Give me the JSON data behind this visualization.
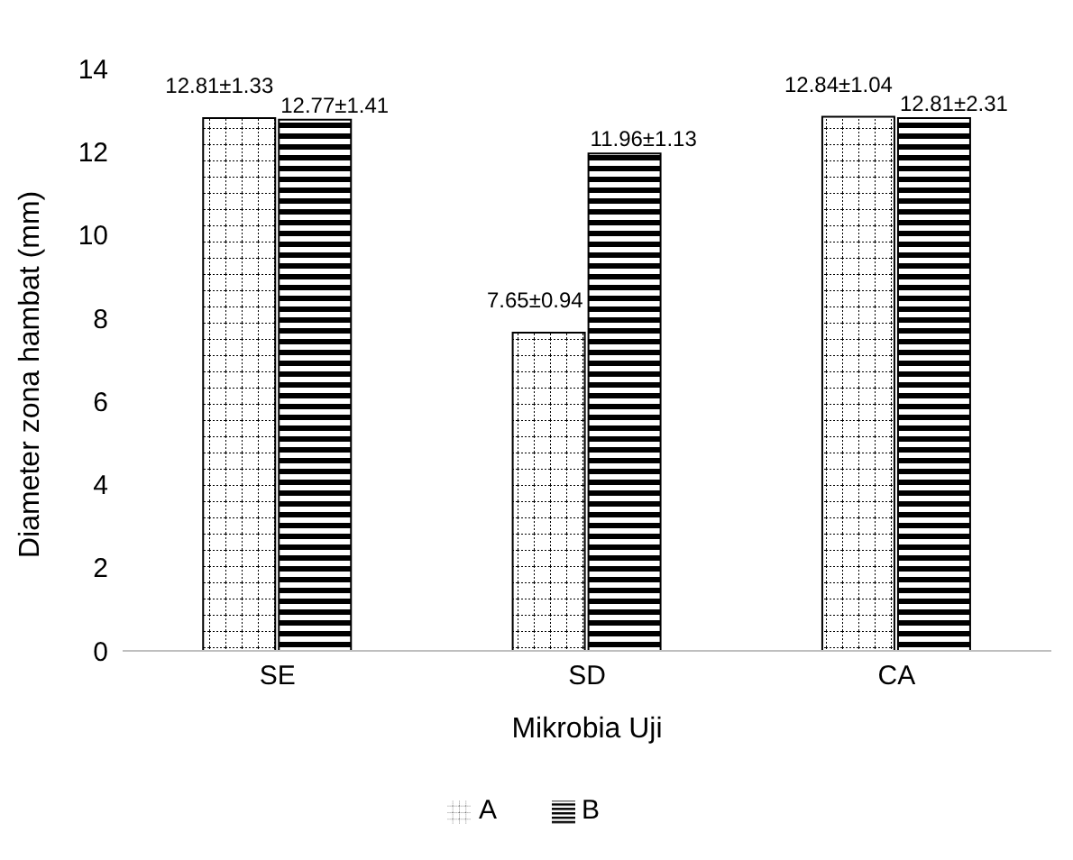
{
  "chart_data": {
    "type": "bar",
    "xlabel": "Mikrobia Uji",
    "ylabel": "Diameter zona hambat (mm)",
    "categories": [
      "SE",
      "SD",
      "CA"
    ],
    "series": [
      {
        "name": "A",
        "color": "#000000",
        "values": [
          12.81,
          7.65,
          12.84
        ],
        "value_labels": [
          "12.81±1.33",
          "7.65±0.94",
          "12.84±1.04"
        ]
      },
      {
        "name": "B",
        "color": "#000000",
        "values": [
          12.77,
          11.96,
          12.81
        ],
        "value_labels": [
          "12.77±1.41",
          "11.96±1.13",
          "12.81±2.31"
        ]
      }
    ],
    "ylim": [
      0,
      14
    ],
    "yticks": [
      0,
      2,
      4,
      6,
      8,
      10,
      12,
      14
    ],
    "grid": false,
    "legend": "bottom"
  }
}
